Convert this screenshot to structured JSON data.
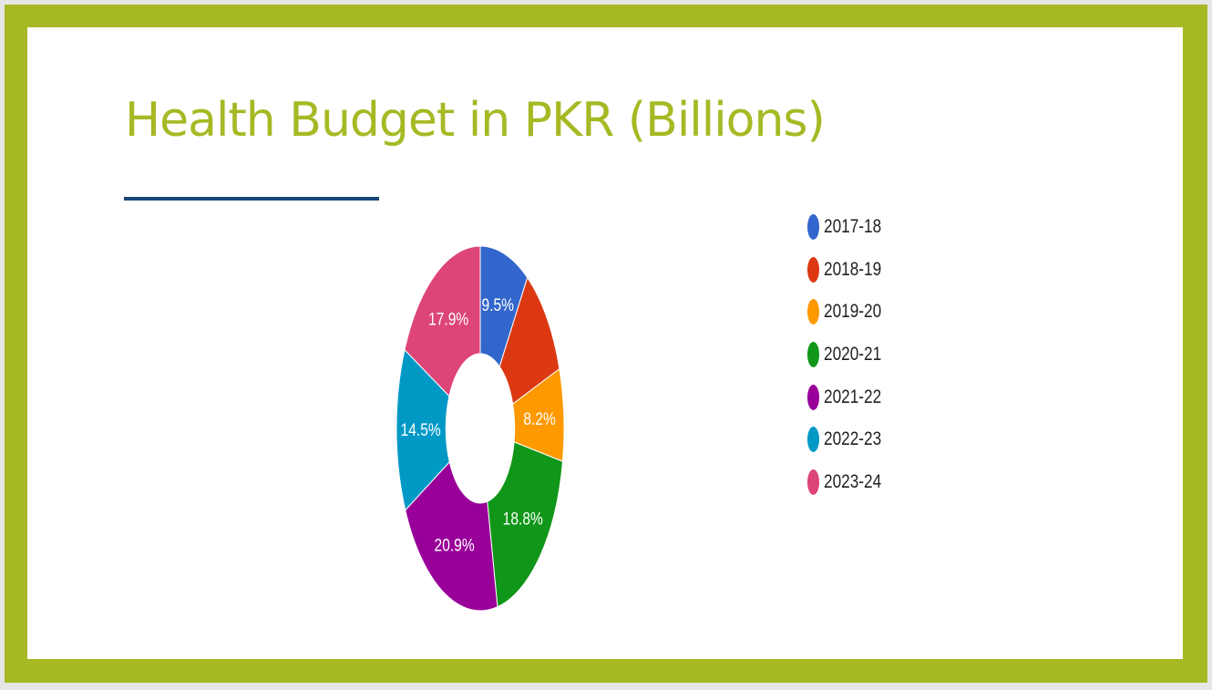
{
  "slide": {
    "title": "Health Budget in PKR (Billions)",
    "title_color": "#a6b924",
    "rule_color": "#1b4677",
    "frame_color": "#a6b924"
  },
  "chart_data": {
    "type": "pie",
    "style": "donut",
    "categories": [
      "2017-18",
      "2018-19",
      "2019-20",
      "2020-21",
      "2021-22",
      "2022-23",
      "2023-24"
    ],
    "values": [
      9.5,
      10.2,
      8.2,
      18.8,
      20.9,
      14.5,
      17.9
    ],
    "labels": [
      "9.5%",
      "",
      "8.2%",
      "18.8%",
      "20.9%",
      "14.5%",
      "17.9%"
    ],
    "colors": [
      "#3366cc",
      "#dc3912",
      "#ff9900",
      "#109618",
      "#990099",
      "#0099c6",
      "#dd4477"
    ],
    "legend_position": "right"
  }
}
